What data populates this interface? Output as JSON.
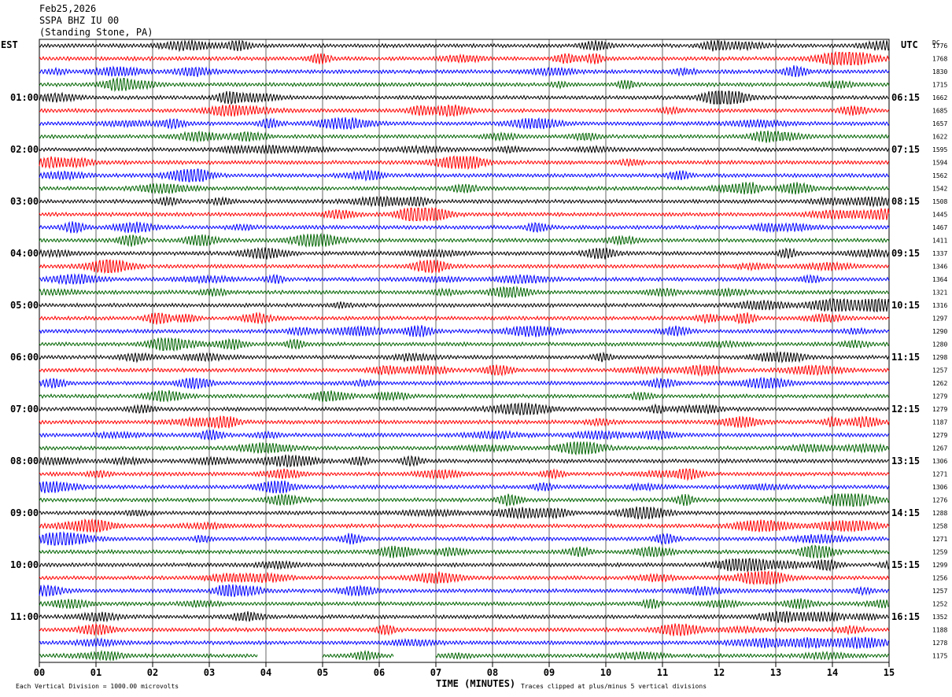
{
  "header": {
    "date": "Feb25,2026",
    "station": "SSPA BHZ IU 00",
    "location": "(Standing Stone, PA)"
  },
  "corner": {
    "left_tz": "EST",
    "right_tz": "UTC",
    "dc": "DC"
  },
  "footer": {
    "left": "Each Vertical Division = 1000.00 microvolts",
    "right": "Traces clipped at plus/minus 5 vertical divisions"
  },
  "chart_data": {
    "type": "line",
    "xlabel": "TIME (MINUTES)",
    "xlim": [
      0,
      15
    ],
    "x_ticks": [
      "00",
      "01",
      "02",
      "03",
      "04",
      "05",
      "06",
      "07",
      "08",
      "09",
      "10",
      "11",
      "12",
      "13",
      "14",
      "15"
    ],
    "trace_colors": [
      "#000000",
      "#ff0000",
      "#0000ff",
      "#006400"
    ],
    "est_labels": [
      {
        "row": 4,
        "label": "01:00"
      },
      {
        "row": 8,
        "label": "02:00"
      },
      {
        "row": 12,
        "label": "03:00"
      },
      {
        "row": 16,
        "label": "04:00"
      },
      {
        "row": 20,
        "label": "05:00"
      },
      {
        "row": 24,
        "label": "06:00"
      },
      {
        "row": 28,
        "label": "07:00"
      },
      {
        "row": 32,
        "label": "08:00"
      },
      {
        "row": 36,
        "label": "09:00"
      },
      {
        "row": 40,
        "label": "10:00"
      },
      {
        "row": 44,
        "label": "11:00"
      }
    ],
    "utc_labels": [
      {
        "row": 4,
        "label": "06:15"
      },
      {
        "row": 8,
        "label": "07:15"
      },
      {
        "row": 12,
        "label": "08:15"
      },
      {
        "row": 16,
        "label": "09:15"
      },
      {
        "row": 20,
        "label": "10:15"
      },
      {
        "row": 24,
        "label": "11:15"
      },
      {
        "row": 28,
        "label": "12:15"
      },
      {
        "row": 32,
        "label": "13:15"
      },
      {
        "row": 36,
        "label": "14:15"
      },
      {
        "row": 40,
        "label": "15:15"
      },
      {
        "row": 44,
        "label": "16:15"
      }
    ],
    "dc_values": [
      1776,
      1768,
      1830,
      1715,
      1662,
      1685,
      1657,
      1622,
      1595,
      1594,
      1562,
      1542,
      1508,
      1445,
      1467,
      1411,
      1337,
      1346,
      1364,
      1321,
      1316,
      1297,
      1290,
      1280,
      1298,
      1257,
      1262,
      1279,
      1279,
      1187,
      1279,
      1267,
      1306,
      1271,
      1306,
      1276,
      1288,
      1258,
      1271,
      1259,
      1299,
      1256,
      1257,
      1252,
      1352,
      1188,
      1278,
      1175
    ],
    "last_trace_segments": [
      [
        0,
        3.85
      ],
      [
        5.0,
        6.25
      ],
      [
        7.0,
        15
      ]
    ]
  }
}
